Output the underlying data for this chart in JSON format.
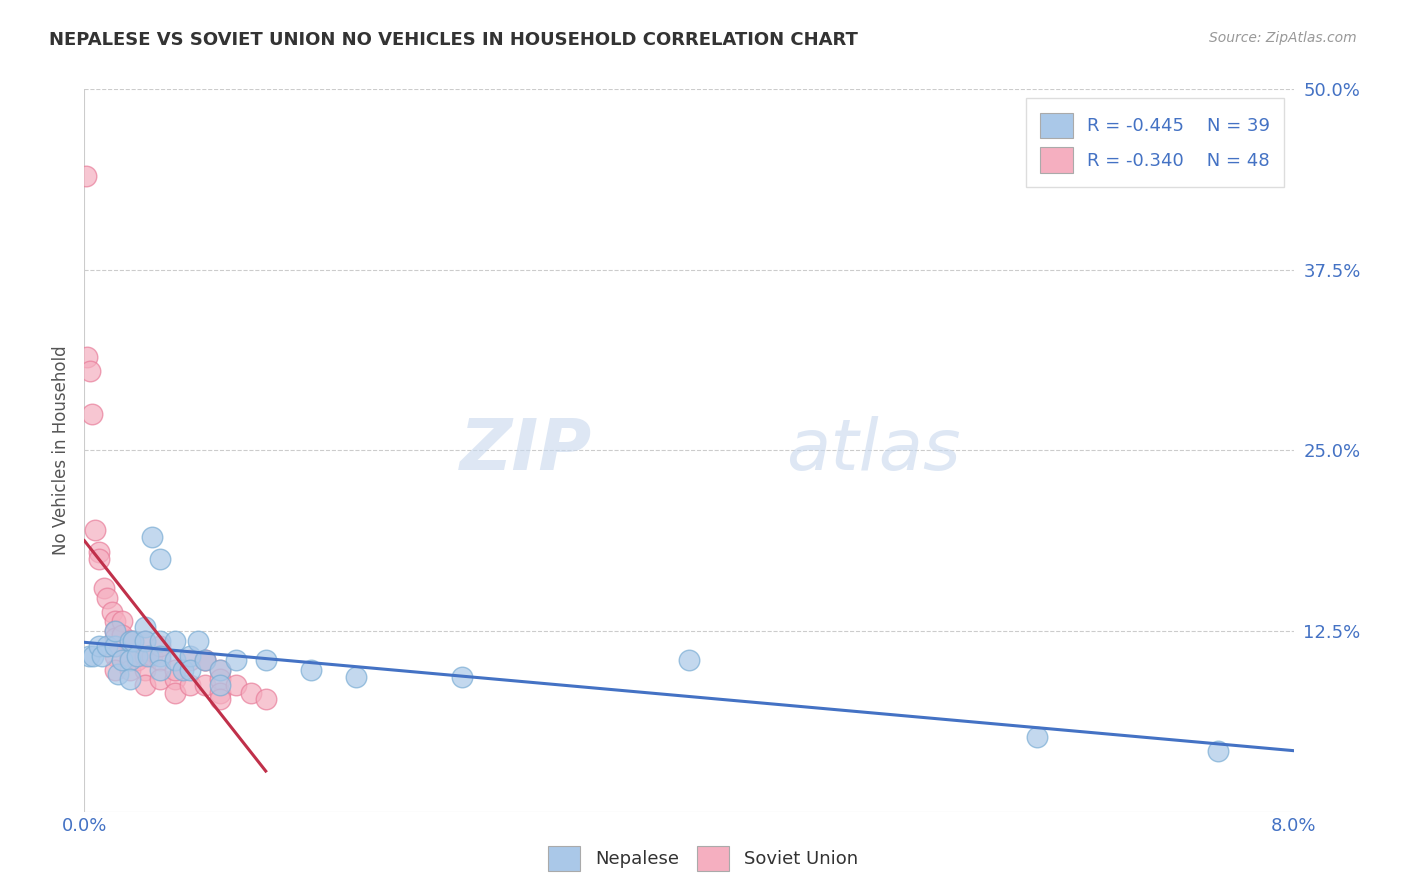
{
  "title": "NEPALESE VS SOVIET UNION NO VEHICLES IN HOUSEHOLD CORRELATION CHART",
  "source": "Source: ZipAtlas.com",
  "ylabel": "No Vehicles in Household",
  "xlim": [
    0.0,
    0.08
  ],
  "ylim": [
    0.0,
    0.5
  ],
  "xticks": [
    0.0,
    0.02,
    0.04,
    0.06,
    0.08
  ],
  "xticklabels": [
    "0.0%",
    "",
    "",
    "",
    "8.0%"
  ],
  "yticks": [
    0.0,
    0.125,
    0.25,
    0.375,
    0.5
  ],
  "yticklabels": [
    "",
    "12.5%",
    "25.0%",
    "37.5%",
    "50.0%"
  ],
  "nepalese_color": "#aac8e8",
  "soviet_color": "#f5afc0",
  "nepalese_edge_color": "#7aadd4",
  "soviet_edge_color": "#e87d9a",
  "nepalese_line_color": "#4472c4",
  "soviet_line_color": "#c0304a",
  "legend_nepalese_R": "-0.445",
  "legend_nepalese_N": "39",
  "legend_soviet_R": "-0.340",
  "legend_soviet_N": "48",
  "watermark_zip": "ZIP",
  "watermark_atlas": "atlas",
  "nepalese_x": [
    0.0003,
    0.0006,
    0.001,
    0.0012,
    0.0015,
    0.002,
    0.002,
    0.0022,
    0.0025,
    0.003,
    0.003,
    0.003,
    0.0032,
    0.0035,
    0.004,
    0.004,
    0.0042,
    0.0045,
    0.005,
    0.005,
    0.005,
    0.005,
    0.006,
    0.006,
    0.0065,
    0.007,
    0.007,
    0.0075,
    0.008,
    0.009,
    0.009,
    0.01,
    0.012,
    0.015,
    0.018,
    0.025,
    0.04,
    0.063,
    0.075
  ],
  "nepalese_y": [
    0.108,
    0.108,
    0.115,
    0.108,
    0.115,
    0.115,
    0.125,
    0.095,
    0.105,
    0.118,
    0.105,
    0.092,
    0.118,
    0.108,
    0.128,
    0.118,
    0.108,
    0.19,
    0.175,
    0.118,
    0.108,
    0.098,
    0.118,
    0.105,
    0.098,
    0.108,
    0.098,
    0.118,
    0.105,
    0.098,
    0.088,
    0.105,
    0.105,
    0.098,
    0.093,
    0.093,
    0.105,
    0.052,
    0.042
  ],
  "soviet_x": [
    0.0001,
    0.0002,
    0.0004,
    0.0005,
    0.0007,
    0.001,
    0.001,
    0.0013,
    0.0015,
    0.0018,
    0.002,
    0.002,
    0.002,
    0.002,
    0.002,
    0.002,
    0.0025,
    0.0025,
    0.003,
    0.003,
    0.003,
    0.003,
    0.003,
    0.0032,
    0.0035,
    0.004,
    0.004,
    0.004,
    0.004,
    0.0045,
    0.005,
    0.005,
    0.005,
    0.006,
    0.006,
    0.006,
    0.007,
    0.007,
    0.008,
    0.008,
    0.008,
    0.009,
    0.009,
    0.009,
    0.009,
    0.01,
    0.011,
    0.012
  ],
  "soviet_y": [
    0.44,
    0.315,
    0.305,
    0.275,
    0.195,
    0.18,
    0.175,
    0.155,
    0.148,
    0.138,
    0.132,
    0.125,
    0.12,
    0.115,
    0.108,
    0.098,
    0.132,
    0.122,
    0.118,
    0.108,
    0.118,
    0.108,
    0.098,
    0.118,
    0.105,
    0.118,
    0.108,
    0.098,
    0.088,
    0.108,
    0.105,
    0.115,
    0.092,
    0.092,
    0.098,
    0.082,
    0.105,
    0.088,
    0.105,
    0.105,
    0.088,
    0.098,
    0.092,
    0.082,
    0.078,
    0.088,
    0.082,
    0.078
  ]
}
